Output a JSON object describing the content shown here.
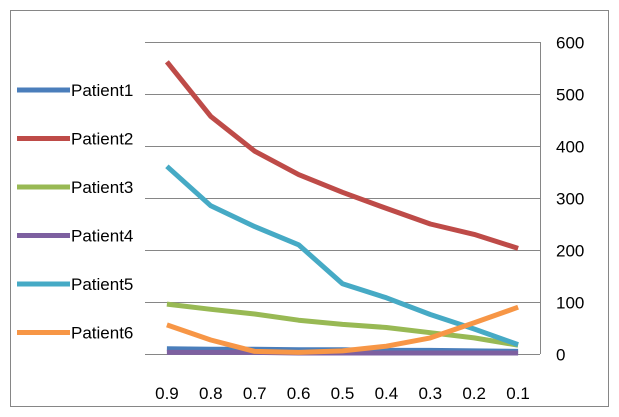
{
  "chart_data": {
    "type": "line",
    "title": "",
    "xlabel": "",
    "ylabel": "",
    "categories": [
      "0.9",
      "0.8",
      "0.7",
      "0.6",
      "0.5",
      "0.4",
      "0.3",
      "0.2",
      "0.1"
    ],
    "ylim": [
      0,
      600
    ],
    "yticks": [
      "0",
      "100",
      "200",
      "300",
      "400",
      "500",
      "600"
    ],
    "y_axis_side": "right",
    "grid": "horizontal",
    "legend_position": "left",
    "series": [
      {
        "name": "Patient1",
        "color": "#4a7ebb",
        "values": [
          10,
          9,
          9,
          8,
          8,
          7,
          7,
          6,
          5
        ]
      },
      {
        "name": "Patient2",
        "color": "#be4b48",
        "values": [
          562,
          457,
          390,
          345,
          311,
          280,
          250,
          230,
          203
        ]
      },
      {
        "name": "Patient3",
        "color": "#98b954",
        "values": [
          96,
          86,
          77,
          65,
          57,
          51,
          41,
          31,
          17
        ]
      },
      {
        "name": "Patient4",
        "color": "#7d60a0",
        "values": [
          3,
          3,
          3,
          2,
          2,
          2,
          2,
          2,
          2
        ]
      },
      {
        "name": "Patient5",
        "color": "#46aac5",
        "values": [
          361,
          285,
          245,
          210,
          135,
          108,
          76,
          48,
          18
        ]
      },
      {
        "name": "Patient6",
        "color": "#f79646",
        "values": [
          56,
          27,
          5,
          3,
          6,
          15,
          31,
          60,
          90
        ]
      }
    ]
  }
}
